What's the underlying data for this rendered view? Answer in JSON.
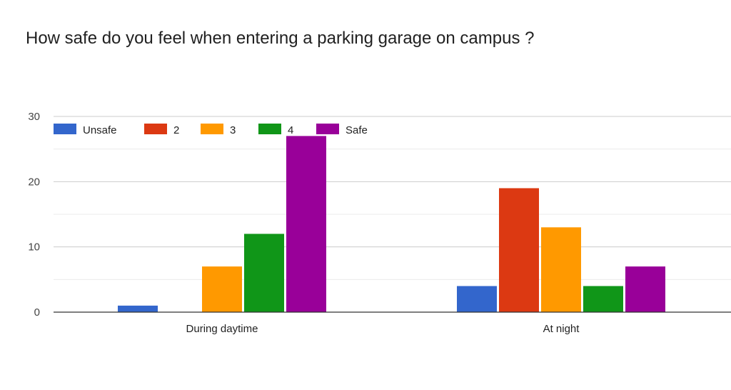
{
  "chart_data": {
    "type": "bar",
    "title": "How safe do you feel when entering a parking garage on campus ?",
    "categories": [
      "During daytime",
      "At night"
    ],
    "series": [
      {
        "name": "Unsafe",
        "color": "#3366cc",
        "values": [
          1,
          4
        ]
      },
      {
        "name": "2",
        "color": "#dc3912",
        "values": [
          0,
          19
        ]
      },
      {
        "name": "3",
        "color": "#ff9900",
        "values": [
          7,
          13
        ]
      },
      {
        "name": "4",
        "color": "#109618",
        "values": [
          12,
          4
        ]
      },
      {
        "name": "Safe",
        "color": "#990099",
        "values": [
          27,
          7
        ]
      }
    ],
    "xlabel": "",
    "ylabel": "",
    "ylim": [
      0,
      30
    ],
    "yticks": [
      0,
      10,
      20,
      30
    ],
    "grid": true,
    "legend_position": "top-left"
  }
}
